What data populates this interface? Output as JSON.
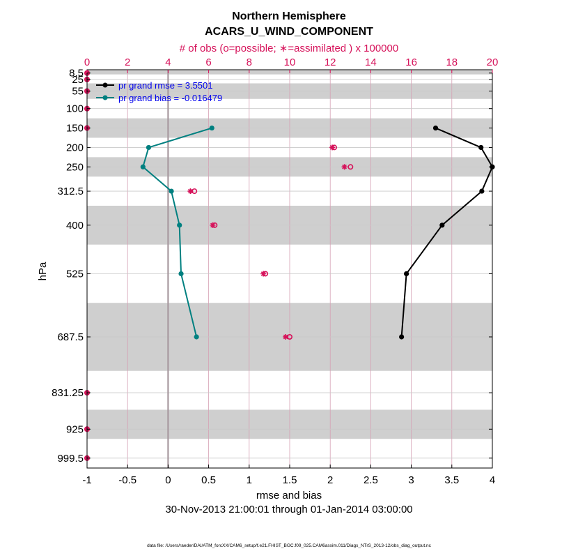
{
  "chart_data": {
    "type": "line",
    "title": "Northern Hemisphere",
    "subtitle": "ACARS_U_WIND_COMPONENT",
    "top_axis_label": "# of obs (o=possible; ∗=assimilated ) x 100000",
    "xlabel": "rmse and bias",
    "ylabel": "hPa",
    "date_range": "30-Nov-2013 21:00:01 through 01-Jan-2014 03:00:00",
    "footnote": "data file: /Users/raeder/DAI/ATM_forcXX/CAM6_setup/f.e21.FHIST_BGC.f09_025.CAM6assim.011/Diags_NTrS_2013-12/obs_diag_output.nc",
    "xlim": [
      -1,
      4
    ],
    "xticks": [
      -1,
      -0.5,
      0,
      0.5,
      1,
      1.5,
      2,
      2.5,
      3,
      3.5,
      4
    ],
    "xtick_labels": [
      "-1",
      "-0.5",
      "0",
      "0.5",
      "1",
      "1.5",
      "2",
      "2.5",
      "3",
      "3.5",
      "4"
    ],
    "top_xlim": [
      0,
      20
    ],
    "top_xticks": [
      0,
      2,
      4,
      6,
      8,
      10,
      12,
      14,
      16,
      18,
      20
    ],
    "top_xtick_labels": [
      "0",
      "2",
      "4",
      "6",
      "8",
      "10",
      "12",
      "14",
      "16",
      "18",
      "20"
    ],
    "ylim": [
      1025,
      0
    ],
    "yticks": [
      8.5,
      25,
      55,
      100,
      150,
      200,
      250,
      312.5,
      400,
      525,
      687.5,
      831.25,
      925,
      999.5
    ],
    "ytick_labels": [
      "8.5",
      "25",
      "55",
      "100",
      "150",
      "200",
      "250",
      "312.5",
      "400",
      "525",
      "687.5",
      "831.25",
      "925",
      "999.5"
    ],
    "bands": [
      [
        0,
        12
      ],
      [
        35,
        75
      ],
      [
        125,
        175
      ],
      [
        225,
        275
      ],
      [
        350,
        450
      ],
      [
        600,
        775
      ],
      [
        875,
        950
      ]
    ],
    "zero_line_x": 0,
    "legend": {
      "placement": "top-left",
      "entries": [
        {
          "label": "pr grand rmse = 3.5501",
          "series": "rmse"
        },
        {
          "label": "pr grand bias = -0.016479",
          "series": "bias"
        }
      ]
    },
    "series": [
      {
        "name": "rmse",
        "color": "#000000",
        "levels": [
          150,
          200,
          250,
          312.5,
          400,
          525,
          687.5
        ],
        "values": [
          3.3,
          3.86,
          4.0,
          3.87,
          3.38,
          2.94,
          2.88
        ]
      },
      {
        "name": "bias",
        "color": "#008080",
        "levels": [
          150,
          200,
          250,
          312.5,
          400,
          525,
          687.5
        ],
        "values": [
          0.54,
          -0.24,
          -0.31,
          0.04,
          0.14,
          0.16,
          0.35
        ]
      }
    ],
    "obs_counts": {
      "units": "x 100000",
      "color": "#d6125a",
      "levels": [
        8.5,
        25,
        55,
        100,
        150,
        200,
        250,
        312.5,
        400,
        525,
        687.5,
        831.25,
        925,
        999.5
      ],
      "possible": [
        0,
        0,
        0,
        0,
        0,
        12.2,
        13.0,
        5.3,
        6.3,
        8.8,
        10.0,
        0,
        0,
        0
      ],
      "assimilated": [
        0,
        0,
        0,
        0,
        0,
        12.1,
        12.7,
        5.1,
        6.2,
        8.7,
        9.8,
        0,
        0,
        0
      ]
    }
  }
}
